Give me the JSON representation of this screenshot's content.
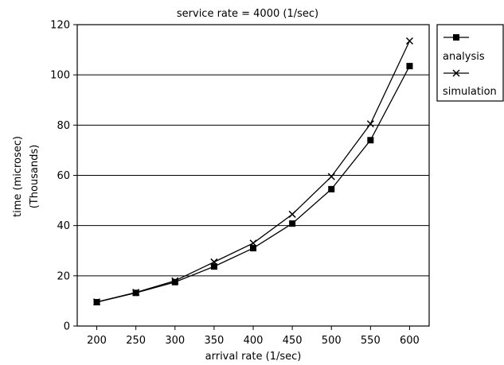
{
  "chart_data": {
    "type": "line",
    "title": "service rate = 4000 (1/sec)",
    "xlabel": "arrival rate (1/sec)",
    "ylabel_line1": "time (microsec)",
    "ylabel_line2": "(Thousands)",
    "x": [
      200,
      250,
      300,
      350,
      400,
      450,
      500,
      550,
      600
    ],
    "xlim": [
      175,
      625
    ],
    "ylim": [
      0,
      120
    ],
    "yticks": [
      0,
      20,
      40,
      60,
      80,
      100,
      120
    ],
    "grid": "horizontal",
    "legend_position": "right",
    "series": [
      {
        "name": "analysis",
        "marker": "square",
        "values": [
          9.5,
          13.2,
          17.5,
          23.7,
          31.0,
          40.8,
          54.5,
          74.0,
          103.5
        ]
      },
      {
        "name": "simulation",
        "marker": "x",
        "values": [
          9.6,
          13.4,
          18.0,
          25.5,
          33.0,
          44.5,
          59.5,
          80.5,
          113.5
        ]
      }
    ]
  }
}
